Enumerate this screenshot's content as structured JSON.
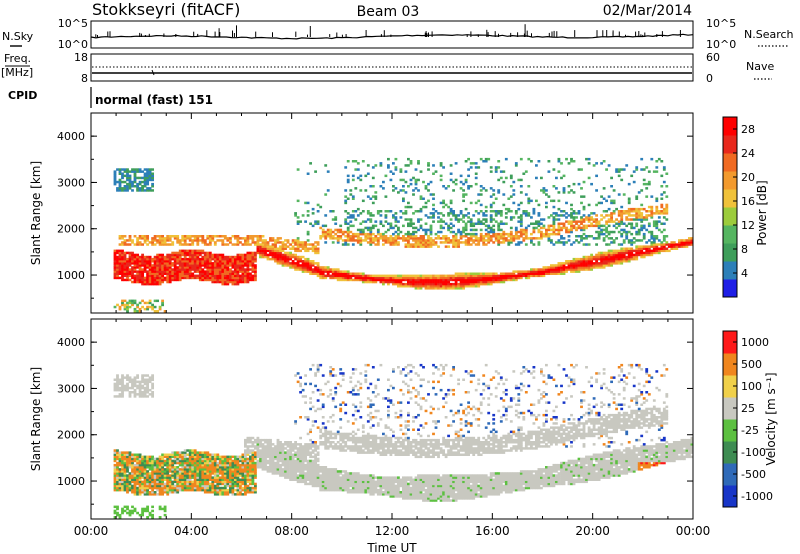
{
  "header": {
    "station": "Stokkseyri (fitACF)",
    "beam": "Beam 03",
    "date": "02/Mar/2014"
  },
  "status_panels": {
    "nsky_label": "N.Sky",
    "nsky_ticks": [
      "10^5",
      "10^0"
    ],
    "nsearch_label": "N.Search",
    "nsearch_ticks": [
      "10^5",
      "10^0"
    ],
    "freq_label": "Freq.",
    "freq_unit": "[MHz]",
    "freq_ticks": [
      "18",
      "8"
    ],
    "nave_label": "Nave",
    "nave_ticks": [
      "60",
      "0"
    ],
    "cpid_label": "CPID",
    "cpid_value": "normal (fast) 151"
  },
  "chart_data": [
    {
      "type": "heatmap",
      "quantity": "Power",
      "ylabel": "Slant Range [km]",
      "ylim": [
        180,
        4500
      ],
      "yticks": [
        "1000",
        "2000",
        "3000",
        "4000"
      ],
      "colorbar_label": "Power [dB]",
      "colorbar_range": [
        0,
        30
      ],
      "colorbar_ticks": [
        "4",
        "8",
        "12",
        "16",
        "20",
        "24",
        "28"
      ],
      "colormap": [
        "#1f1fe6",
        "#2c7fb8",
        "#3e9e5a",
        "#55b560",
        "#9ccc3c",
        "#f0c23a",
        "#f29a2e",
        "#f06a22",
        "#e8281c",
        "#ff0000"
      ]
    },
    {
      "type": "heatmap",
      "quantity": "Velocity",
      "ylabel": "Slant Range [km]",
      "ylim": [
        180,
        4500
      ],
      "yticks": [
        "1000",
        "2000",
        "3000",
        "4000"
      ],
      "colorbar_label": "Velocity  [m s⁻¹]",
      "colorbar_ticks": [
        "1000",
        "500",
        "100",
        "25",
        "-25",
        "-100",
        "-500",
        "-1000"
      ],
      "colormap": [
        "#1836c8",
        "#2f6ab8",
        "#3e8c52",
        "#5cc040",
        "#c8c8c0",
        "#f0d04a",
        "#f0861e",
        "#ff1a1a"
      ]
    }
  ],
  "x_axis": {
    "label": "Time UT",
    "ticks": [
      "00:00",
      "04:00",
      "08:00",
      "12:00",
      "16:00",
      "20:00",
      "00:00"
    ]
  }
}
